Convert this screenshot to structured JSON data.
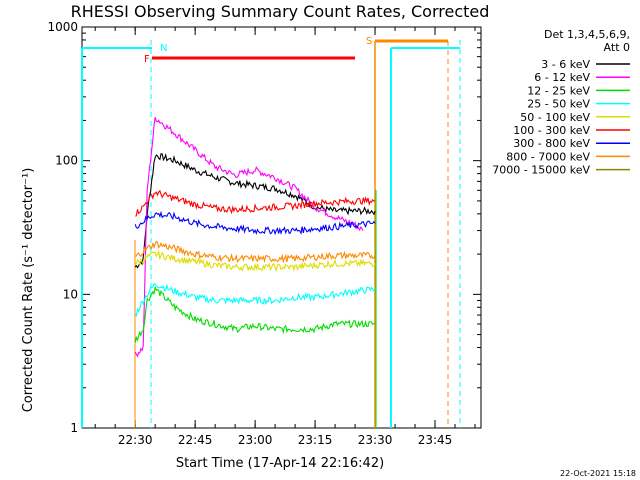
{
  "chart_data": {
    "type": "line",
    "title": "RHESSI Observing Summary Count Rates, Corrected",
    "xlabel": "Start Time (17-Apr-14 22:16:42)",
    "ylabel": "Corrected Count Rate (s⁻¹ detector⁻¹)",
    "y_scale": "log",
    "ylim": [
      1,
      1000
    ],
    "xlim": [
      "22:16:42",
      "23:56:30"
    ],
    "x_tick_labels": [
      "22:30",
      "22:45",
      "23:00",
      "23:15",
      "23:30",
      "23:45"
    ],
    "y_tick_labels": [
      "1",
      "10",
      "100",
      "1000"
    ],
    "legend": {
      "header1": "Det 1,3,4,5,6,9,",
      "header2": "Att 0",
      "position": "right",
      "entries": [
        {
          "label": "3 - 6 keV",
          "color": "#000000"
        },
        {
          "label": "6 - 12 keV",
          "color": "#ff00ff"
        },
        {
          "label": "12 - 25 keV",
          "color": "#00dd00"
        },
        {
          "label": "25 - 50 keV",
          "color": "#00ffff"
        },
        {
          "label": "50 - 100 keV",
          "color": "#dddd00"
        },
        {
          "label": "100 - 300 keV",
          "color": "#ff0000"
        },
        {
          "label": "300 - 800 keV",
          "color": "#0000ff"
        },
        {
          "label": "800 - 7000 keV",
          "color": "#ff8800"
        },
        {
          "label": "7000 - 15000 keV",
          "color": "#888800"
        }
      ]
    },
    "series": [
      {
        "name": "3 - 6 keV",
        "color": "#000000",
        "x": [
          "22:30",
          "22:32",
          "22:33",
          "22:35",
          "22:40",
          "22:45",
          "22:50",
          "22:55",
          "23:00",
          "23:05",
          "23:10",
          "23:15",
          "23:20",
          "23:25",
          "23:30"
        ],
        "y": [
          16,
          18,
          40,
          110,
          100,
          85,
          75,
          68,
          65,
          62,
          55,
          45,
          42,
          42,
          42
        ]
      },
      {
        "name": "6 - 12 keV",
        "color": "#ff00ff",
        "x": [
          "22:30",
          "22:32",
          "22:33",
          "22:35",
          "22:40",
          "22:45",
          "22:50",
          "22:55",
          "23:00",
          "23:05",
          "23:10",
          "23:15",
          "23:20",
          "23:25",
          "23:27"
        ],
        "y": [
          3.5,
          4,
          60,
          210,
          160,
          120,
          90,
          78,
          85,
          75,
          62,
          45,
          38,
          33,
          30
        ]
      },
      {
        "name": "12 - 25 keV",
        "color": "#00dd00",
        "x": [
          "22:30",
          "22:32",
          "22:33",
          "22:35",
          "22:40",
          "22:45",
          "22:50",
          "22:55",
          "23:00",
          "23:05",
          "23:10",
          "23:15",
          "23:20",
          "23:25",
          "23:30"
        ],
        "y": [
          4.5,
          5.5,
          9,
          11,
          8,
          6.5,
          6,
          5.5,
          5.8,
          5.5,
          5.5,
          5.5,
          6,
          6,
          6
        ]
      },
      {
        "name": "25 - 50 keV",
        "color": "#00ffff",
        "x": [
          "22:30",
          "22:32",
          "22:33",
          "22:35",
          "22:40",
          "22:45",
          "22:50",
          "22:55",
          "23:00",
          "23:05",
          "23:10",
          "23:15",
          "23:20",
          "23:25",
          "23:30"
        ],
        "y": [
          7,
          9,
          10,
          12,
          10.5,
          9.5,
          9,
          9,
          9,
          9,
          9.5,
          9.5,
          10,
          10.5,
          11
        ]
      },
      {
        "name": "50 - 100 keV",
        "color": "#dddd00",
        "x": [
          "22:30",
          "22:32",
          "22:33",
          "22:35",
          "22:40",
          "22:45",
          "22:50",
          "22:55",
          "23:00",
          "23:05",
          "23:10",
          "23:15",
          "23:20",
          "23:25",
          "23:30"
        ],
        "y": [
          17,
          18,
          19,
          20,
          18.5,
          17.5,
          16.5,
          16,
          16,
          16,
          16,
          16.5,
          17,
          17,
          17
        ]
      },
      {
        "name": "100 - 300 keV",
        "color": "#ff0000",
        "x": [
          "22:30",
          "22:32",
          "22:33",
          "22:35",
          "22:40",
          "22:45",
          "22:50",
          "22:55",
          "23:00",
          "23:05",
          "23:10",
          "23:15",
          "23:20",
          "23:25",
          "23:30"
        ],
        "y": [
          40,
          45,
          50,
          58,
          52,
          47,
          44,
          43,
          44,
          45,
          46,
          48,
          49,
          50,
          50
        ]
      },
      {
        "name": "300 - 800 keV",
        "color": "#0000ff",
        "x": [
          "22:30",
          "22:32",
          "22:33",
          "22:35",
          "22:40",
          "22:45",
          "22:50",
          "22:55",
          "23:00",
          "23:05",
          "23:10",
          "23:15",
          "23:20",
          "23:25",
          "23:30"
        ],
        "y": [
          32,
          35,
          37,
          40,
          38,
          34,
          32,
          31,
          30,
          30,
          30,
          31,
          32,
          33,
          34
        ]
      },
      {
        "name": "800 - 7000 keV",
        "color": "#ff8800",
        "x": [
          "22:30",
          "22:32",
          "22:33",
          "22:35",
          "22:40",
          "22:45",
          "22:50",
          "22:55",
          "23:00",
          "23:05",
          "23:10",
          "23:15",
          "23:20",
          "23:25",
          "23:30"
        ],
        "y": [
          19,
          21,
          22,
          24,
          22,
          20,
          19,
          18.5,
          18.5,
          18.5,
          18.5,
          19,
          19.5,
          19.5,
          19.5
        ]
      }
    ],
    "annotations": [
      {
        "label": "N",
        "color": "#00ffff"
      },
      {
        "label": "F",
        "color": "#ff0000"
      },
      {
        "label": "S",
        "color": "#ff8800"
      }
    ],
    "footer_date": "22-Oct-2021 15:18"
  }
}
